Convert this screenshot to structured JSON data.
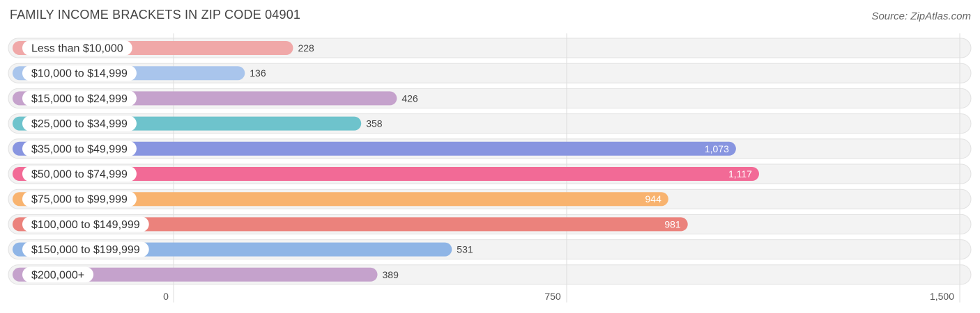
{
  "title": "FAMILY INCOME BRACKETS IN ZIP CODE 04901",
  "source": "Source: ZipAtlas.com",
  "chart_data": {
    "type": "bar",
    "orientation": "horizontal",
    "title": "FAMILY INCOME BRACKETS IN ZIP CODE 04901",
    "categories": [
      "Less than $10,000",
      "$10,000 to $14,999",
      "$15,000 to $24,999",
      "$25,000 to $34,999",
      "$35,000 to $49,999",
      "$50,000 to $74,999",
      "$75,000 to $99,999",
      "$100,000 to $149,999",
      "$150,000 to $199,999",
      "$200,000+"
    ],
    "values": [
      228,
      136,
      426,
      358,
      1073,
      1117,
      944,
      981,
      531,
      389
    ],
    "value_labels": [
      "228",
      "136",
      "426",
      "358",
      "1,073",
      "1,117",
      "944",
      "981",
      "531",
      "389"
    ],
    "colors": [
      "#f0a8a8",
      "#a9c5ec",
      "#c5a2cc",
      "#6ec3cc",
      "#8895e0",
      "#f26a96",
      "#f8b36f",
      "#eb827c",
      "#8fb5e6",
      "#c5a2cc"
    ],
    "xlim": [
      0,
      1500
    ],
    "xticks": [
      0,
      750,
      1500
    ],
    "xtick_labels": [
      "0",
      "750",
      "1,500"
    ],
    "xlabel": "",
    "ylabel": "",
    "grid": true
  }
}
